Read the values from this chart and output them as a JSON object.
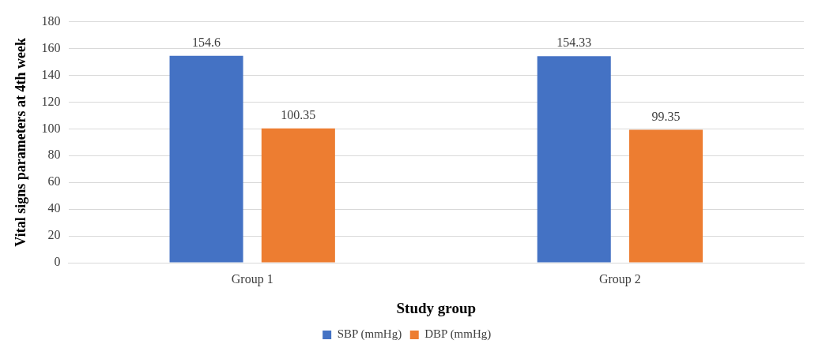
{
  "chart_data": {
    "type": "bar",
    "categories": [
      "Group 1",
      "Group 2"
    ],
    "series": [
      {
        "name": "SBP (mmHg)",
        "color": "#4472c4",
        "values": [
          154.6,
          154.33
        ]
      },
      {
        "name": "DBP (mmHg)",
        "color": "#ed7d31",
        "values": [
          100.35,
          99.35
        ]
      }
    ],
    "xlabel": "Study group",
    "ylabel": "Vital signs parameters at 4th week",
    "ylim": [
      0,
      180
    ],
    "yticks": [
      0,
      20,
      40,
      60,
      80,
      100,
      120,
      140,
      160,
      180
    ],
    "grid": "y",
    "legend": "bottom",
    "data_labels": true
  }
}
